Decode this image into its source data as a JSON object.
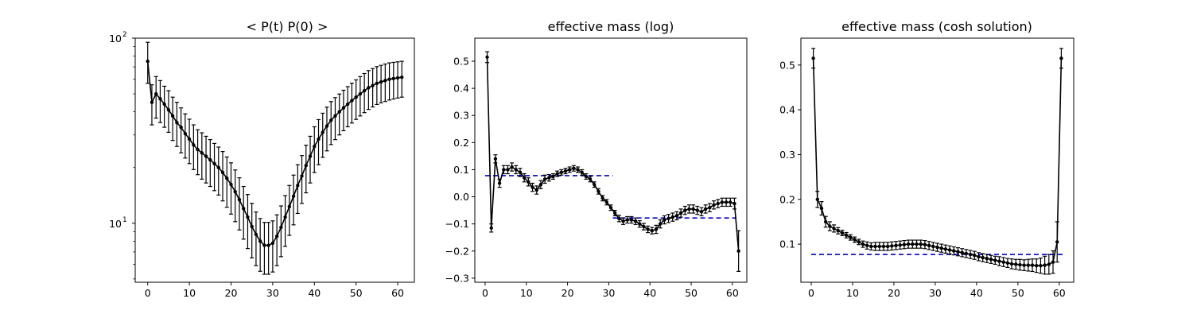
{
  "chart_data": [
    {
      "type": "line",
      "title": "< P(t)  P(0) >",
      "yscale": "log",
      "xlim": [
        -3,
        64
      ],
      "ylim": [
        4.8,
        100
      ],
      "xticks": [
        0,
        10,
        20,
        30,
        40,
        50,
        60
      ],
      "xtick_labels": [
        "0",
        "10",
        "20",
        "30",
        "40",
        "50",
        "60"
      ],
      "yticks": [
        10,
        100
      ],
      "ytick_labels_base": [
        "10",
        "10"
      ],
      "ytick_labels_exp": [
        "1",
        "2"
      ],
      "series": [
        {
          "color": "#000000",
          "x": [
            0,
            1,
            2,
            3,
            4,
            5,
            6,
            7,
            8,
            9,
            10,
            11,
            12,
            13,
            14,
            15,
            16,
            17,
            18,
            19,
            20,
            21,
            22,
            23,
            24,
            25,
            26,
            27,
            28,
            29,
            30,
            31,
            32,
            33,
            34,
            35,
            36,
            37,
            38,
            39,
            40,
            41,
            42,
            43,
            44,
            45,
            46,
            47,
            48,
            49,
            50,
            51,
            52,
            53,
            54,
            55,
            56,
            57,
            58,
            59,
            60,
            61
          ],
          "y": [
            75,
            45,
            50,
            47,
            44,
            41,
            38,
            35,
            33,
            30.5,
            28.5,
            26.5,
            25,
            24,
            23,
            22,
            21,
            20,
            18.8,
            17.5,
            16.2,
            14.8,
            13.4,
            12,
            10.8,
            9.6,
            8.7,
            8.0,
            7.6,
            7.6,
            7.8,
            8.5,
            9.5,
            10.8,
            12.3,
            14,
            16,
            18,
            20.5,
            23,
            26,
            28.5,
            31,
            33.5,
            36,
            38,
            40,
            42,
            44,
            46,
            48,
            50,
            52,
            54,
            55.5,
            57,
            58,
            59,
            60,
            60.5,
            61,
            61.5
          ],
          "yerr_low": [
            57,
            34,
            37,
            35,
            33,
            31,
            28,
            26,
            24,
            22.5,
            21,
            19.5,
            18.3,
            17.3,
            16.5,
            15.8,
            15,
            14.2,
            13.2,
            12.2,
            11.2,
            10.2,
            9.2,
            8.2,
            7.3,
            6.5,
            5.9,
            5.5,
            5.3,
            5.3,
            5.45,
            5.9,
            6.6,
            7.5,
            8.6,
            9.8,
            11.3,
            12.8,
            14.6,
            16.5,
            18.8,
            20.7,
            22.7,
            24.6,
            26.6,
            28.3,
            30,
            31.6,
            33.2,
            34.8,
            36.4,
            38,
            39.6,
            41.2,
            42.5,
            43.8,
            44.7,
            45.5,
            46.3,
            46.9,
            47.5,
            48
          ],
          "yerr_high": [
            95,
            56,
            62,
            59,
            55,
            52,
            48,
            45,
            42,
            39,
            36.5,
            34,
            32,
            30.8,
            29.5,
            28.3,
            27,
            25.8,
            24.4,
            22.8,
            21.2,
            19.4,
            17.6,
            15.8,
            14.3,
            12.8,
            11.5,
            10.6,
            10.1,
            10.1,
            10.3,
            11.1,
            12.4,
            14.1,
            16,
            18.2,
            20.7,
            23.2,
            26.4,
            29.5,
            33.2,
            36.3,
            39.3,
            42.4,
            45.4,
            47.7,
            49.9,
            52.3,
            54.7,
            57.1,
            59.5,
            62,
            64.4,
            66.8,
            68.5,
            70.2,
            71.3,
            72.5,
            73.5,
            74,
            74.5,
            75
          ]
        }
      ]
    },
    {
      "type": "line",
      "title": "effective mass (log)",
      "xlim": [
        -2.5,
        63.5
      ],
      "ylim": [
        -0.315,
        0.585
      ],
      "xticks": [
        0,
        10,
        20,
        30,
        40,
        50,
        60
      ],
      "xtick_labels": [
        "0",
        "10",
        "20",
        "30",
        "40",
        "50",
        "60"
      ],
      "yticks": [
        -0.3,
        -0.2,
        -0.1,
        0.0,
        0.1,
        0.2,
        0.3,
        0.4,
        0.5
      ],
      "ytick_labels": [
        "−0.3",
        "−0.2",
        "−0.1",
        "0.0",
        "0.1",
        "0.2",
        "0.3",
        "0.4",
        "0.5"
      ],
      "series": [
        {
          "color": "#000000",
          "x": [
            0.5,
            1.5,
            2.5,
            3.5,
            4.5,
            5.5,
            6.5,
            7.5,
            8.5,
            9.5,
            10.5,
            11.5,
            12.5,
            13.5,
            14.5,
            15.5,
            16.5,
            17.5,
            18.5,
            19.5,
            20.5,
            21.5,
            22.5,
            23.5,
            24.5,
            25.5,
            26.5,
            27.5,
            28.5,
            29.5,
            30.5,
            31.5,
            32.5,
            33.5,
            34.5,
            35.5,
            36.5,
            37.5,
            38.5,
            39.5,
            40.5,
            41.5,
            42.5,
            43.5,
            44.5,
            45.5,
            46.5,
            47.5,
            48.5,
            49.5,
            50.5,
            51.5,
            52.5,
            53.5,
            54.5,
            55.5,
            56.5,
            57.5,
            58.5,
            59.5,
            60.5,
            61.5
          ],
          "y": [
            0.515,
            -0.115,
            0.14,
            0.05,
            0.1,
            0.1,
            0.11,
            0.1,
            0.09,
            0.07,
            0.055,
            0.035,
            0.025,
            0.045,
            0.065,
            0.07,
            0.075,
            0.085,
            0.09,
            0.095,
            0.1,
            0.105,
            0.1,
            0.09,
            0.075,
            0.065,
            0.045,
            0.02,
            -0.005,
            -0.02,
            -0.04,
            -0.06,
            -0.08,
            -0.09,
            -0.085,
            -0.085,
            -0.09,
            -0.1,
            -0.11,
            -0.12,
            -0.125,
            -0.12,
            -0.1,
            -0.085,
            -0.08,
            -0.075,
            -0.07,
            -0.06,
            -0.05,
            -0.045,
            -0.045,
            -0.05,
            -0.055,
            -0.045,
            -0.04,
            -0.03,
            -0.025,
            -0.02,
            -0.02,
            -0.02,
            -0.025,
            -0.2
          ],
          "yerr": [
            0.02,
            0.015,
            0.015,
            0.015,
            0.015,
            0.015,
            0.015,
            0.015,
            0.015,
            0.015,
            0.015,
            0.015,
            0.015,
            0.015,
            0.015,
            0.012,
            0.01,
            0.01,
            0.01,
            0.01,
            0.01,
            0.01,
            0.01,
            0.01,
            0.01,
            0.01,
            0.01,
            0.01,
            0.01,
            0.01,
            0.01,
            0.01,
            0.012,
            0.012,
            0.012,
            0.012,
            0.012,
            0.012,
            0.012,
            0.012,
            0.012,
            0.015,
            0.015,
            0.015,
            0.015,
            0.015,
            0.015,
            0.015,
            0.015,
            0.015,
            0.015,
            0.015,
            0.015,
            0.015,
            0.015,
            0.015,
            0.015,
            0.015,
            0.015,
            0.015,
            0.02,
            0.075
          ]
        }
      ],
      "dashed_lines": [
        {
          "color": "#0000cc",
          "x": [
            0,
            31
          ],
          "y": 0.078
        },
        {
          "color": "#0000cc",
          "x": [
            31,
            61
          ],
          "y": -0.078
        }
      ]
    },
    {
      "type": "line",
      "title": "effective mass (cosh solution)",
      "xlim": [
        -2.5,
        63.5
      ],
      "ylim": [
        0.015,
        0.56
      ],
      "xticks": [
        0,
        10,
        20,
        30,
        40,
        50,
        60
      ],
      "xtick_labels": [
        "0",
        "10",
        "20",
        "30",
        "40",
        "50",
        "60"
      ],
      "yticks": [
        0.1,
        0.2,
        0.3,
        0.4,
        0.5
      ],
      "ytick_labels": [
        "0.1",
        "0.2",
        "0.3",
        "0.4",
        "0.5"
      ],
      "series": [
        {
          "color": "#000000",
          "x": [
            0.5,
            1.5,
            2.5,
            3.5,
            4.5,
            5.5,
            6.5,
            7.5,
            8.5,
            9.5,
            10.5,
            11.5,
            12.5,
            13.5,
            14.5,
            15.5,
            16.5,
            17.5,
            18.5,
            19.5,
            20.5,
            21.5,
            22.5,
            23.5,
            24.5,
            25.5,
            26.5,
            27.5,
            28.5,
            29.5,
            30.5,
            31.5,
            32.5,
            33.5,
            34.5,
            35.5,
            36.5,
            37.5,
            38.5,
            39.5,
            40.5,
            41.5,
            42.5,
            43.5,
            44.5,
            45.5,
            46.5,
            47.5,
            48.5,
            49.5,
            50.5,
            51.5,
            52.5,
            53.5,
            54.5,
            55.5,
            56.5,
            57.5,
            58.5,
            59.5,
            60.5
          ],
          "y": [
            0.515,
            0.2,
            0.18,
            0.15,
            0.14,
            0.135,
            0.13,
            0.125,
            0.12,
            0.115,
            0.11,
            0.105,
            0.1,
            0.097,
            0.095,
            0.095,
            0.095,
            0.095,
            0.095,
            0.096,
            0.097,
            0.098,
            0.099,
            0.1,
            0.1,
            0.1,
            0.1,
            0.099,
            0.097,
            0.095,
            0.093,
            0.091,
            0.089,
            0.087,
            0.085,
            0.083,
            0.081,
            0.079,
            0.077,
            0.075,
            0.072,
            0.07,
            0.068,
            0.066,
            0.064,
            0.062,
            0.06,
            0.058,
            0.056,
            0.055,
            0.054,
            0.053,
            0.053,
            0.053,
            0.052,
            0.052,
            0.053,
            0.055,
            0.06,
            0.105,
            0.515
          ],
          "yerr": [
            0.022,
            0.018,
            0.015,
            0.012,
            0.01,
            0.008,
            0.007,
            0.006,
            0.006,
            0.006,
            0.006,
            0.006,
            0.007,
            0.008,
            0.008,
            0.009,
            0.009,
            0.009,
            0.009,
            0.009,
            0.009,
            0.009,
            0.009,
            0.009,
            0.009,
            0.009,
            0.009,
            0.009,
            0.009,
            0.009,
            0.009,
            0.009,
            0.009,
            0.009,
            0.009,
            0.009,
            0.009,
            0.009,
            0.009,
            0.009,
            0.009,
            0.009,
            0.009,
            0.009,
            0.009,
            0.01,
            0.01,
            0.01,
            0.011,
            0.011,
            0.012,
            0.012,
            0.013,
            0.014,
            0.015,
            0.017,
            0.02,
            0.022,
            0.025,
            0.045,
            0.022
          ]
        }
      ],
      "dashed_lines": [
        {
          "color": "#0000cc",
          "x": [
            0,
            61
          ],
          "y": 0.077
        }
      ]
    }
  ]
}
